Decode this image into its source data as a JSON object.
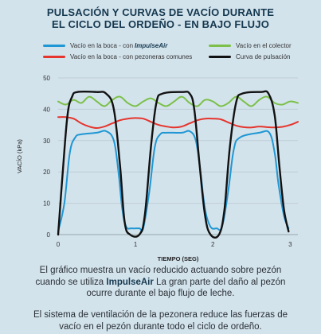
{
  "header": {
    "title_line1": "PULSACIÓN Y CURVAS DE VACÍO DURANTE",
    "title_line2": "EL CICLO DEL ORDEÑO - EN BAJO FLUJO"
  },
  "legend": {
    "blue_prefix": "Vacío en la boca - con",
    "blue_brand": "ImpulseAir",
    "green": "Vacío en el colector",
    "red": "Vacío en la boca - con pezoneras comunes",
    "black": "Curva de pulsación"
  },
  "chart_data": {
    "type": "line",
    "title": "PULSACIÓN Y CURVAS DE VACÍO DURANTE EL CICLO DEL ORDEÑO - EN BAJO FLUJO",
    "xlabel": "TIEMPO (SEG)",
    "ylabel": "VACÍO (kPa)",
    "xlim": [
      0,
      3.1
    ],
    "ylim": [
      0,
      50
    ],
    "xticks": [
      0,
      1,
      2,
      3
    ],
    "yticks": [
      0,
      10,
      20,
      30,
      40,
      50
    ],
    "grid": "horizontal",
    "legend_position": "top",
    "series": [
      {
        "name": "Vacío en el colector",
        "color": "#7cc04a",
        "x": [
          0,
          0.1,
          0.2,
          0.3,
          0.4,
          0.5,
          0.6,
          0.7,
          0.8,
          0.9,
          1.0,
          1.1,
          1.2,
          1.3,
          1.4,
          1.5,
          1.6,
          1.7,
          1.8,
          1.9,
          2.0,
          2.1,
          2.2,
          2.3,
          2.4,
          2.5,
          2.6,
          2.7,
          2.8,
          2.9,
          3.0,
          3.1
        ],
        "values": [
          42.5,
          41.5,
          43,
          42,
          44,
          42.5,
          41,
          43,
          44,
          42,
          41,
          42.5,
          43.5,
          42,
          41,
          42.5,
          44,
          42,
          41,
          43,
          42.5,
          41,
          42,
          44,
          42.5,
          41,
          43,
          44,
          42,
          41.5,
          42.5,
          42
        ]
      },
      {
        "name": "Vacío en la boca - con pezoneras comunes",
        "color": "#e5352d",
        "x": [
          0,
          0.1,
          0.2,
          0.3,
          0.4,
          0.5,
          0.6,
          0.7,
          0.8,
          0.9,
          1.0,
          1.1,
          1.2,
          1.3,
          1.4,
          1.5,
          1.6,
          1.7,
          1.8,
          1.9,
          2.0,
          2.1,
          2.2,
          2.3,
          2.4,
          2.5,
          2.6,
          2.7,
          2.8,
          2.9,
          3.0,
          3.1
        ],
        "values": [
          37.5,
          37.5,
          37,
          35.5,
          34.5,
          34,
          34.5,
          35.5,
          36.5,
          37,
          37.2,
          37,
          36,
          35,
          34.5,
          34.2,
          34.5,
          35.5,
          36.5,
          37,
          37,
          36.8,
          35.8,
          34.8,
          34.3,
          34.2,
          34.5,
          34.3,
          34.2,
          34.4,
          35,
          36
        ]
      },
      {
        "name": "Vacío en la boca - con ImpulseAir",
        "color": "#1f97d4",
        "x": [
          0,
          0.08,
          0.15,
          0.22,
          0.3,
          0.5,
          0.62,
          0.72,
          0.78,
          0.83,
          0.88,
          0.95,
          1.05,
          1.1,
          1.18,
          1.25,
          1.32,
          1.4,
          1.6,
          1.7,
          1.78,
          1.84,
          1.9,
          1.97,
          2.05,
          2.12,
          2.2,
          2.27,
          2.35,
          2.6,
          2.73,
          2.8,
          2.85,
          2.92,
          2.98
        ],
        "values": [
          1,
          10,
          26,
          31,
          32,
          32.5,
          33,
          30,
          20,
          8,
          2.5,
          2,
          2,
          2,
          14,
          28,
          32,
          32.5,
          32.5,
          33,
          30,
          20,
          8,
          2.5,
          2,
          2.5,
          14,
          27,
          31,
          32.5,
          32.5,
          26,
          16,
          6,
          2
        ]
      },
      {
        "name": "Curva de pulsación",
        "color": "#111111",
        "x": [
          0,
          0.06,
          0.12,
          0.18,
          0.25,
          0.5,
          0.62,
          0.72,
          0.8,
          0.86,
          0.93,
          1.05,
          1.12,
          1.2,
          1.27,
          1.35,
          1.6,
          1.7,
          1.76,
          1.83,
          1.9,
          1.97,
          2.08,
          2.15,
          2.22,
          2.3,
          2.38,
          2.62,
          2.72,
          2.8,
          2.86,
          2.92,
          2.98
        ],
        "values": [
          0,
          20,
          38,
          44,
          45.5,
          45.5,
          45,
          40,
          22,
          4,
          0,
          0,
          6,
          28,
          42,
          45,
          45.5,
          45,
          40,
          22,
          6,
          0,
          0,
          8,
          28,
          42,
          45,
          45.5,
          45,
          38,
          22,
          8,
          1
        ]
      }
    ]
  },
  "caption": {
    "p1_a": "El gráfico muestra un vacío reducido actuando sobre pezón",
    "p1_b": "cuando se utiliza",
    "p1_brand": "ImpulseAir",
    "p1_c": "La gran parte del daño al pezón",
    "p1_d": "ocurre durante el bajo flujo de leche.",
    "p2_a": "El sistema de ventilación de la pezonera reduce las fuerzas de",
    "p2_b": "vacío en el pezón durante todo el ciclo de ordeño."
  }
}
